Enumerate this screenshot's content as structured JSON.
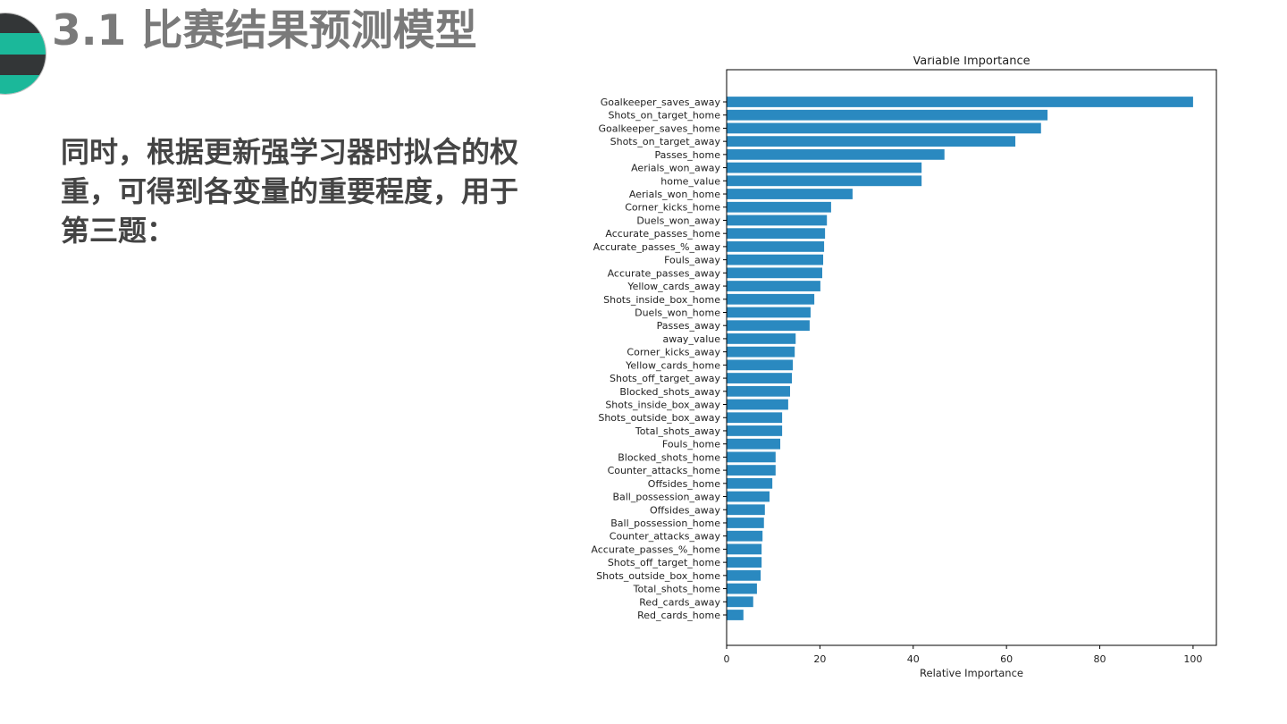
{
  "slide": {
    "title": "3.1  比赛结果预测模型",
    "body": "同时，根据更新强学习器时拟合的权重，可得到各变量的重要程度，用于第三题：",
    "logo_colors": [
      "#333637",
      "#1bb89a"
    ]
  },
  "chart_data": {
    "type": "bar",
    "orientation": "horizontal",
    "title": "Variable Importance",
    "xlabel": "Relative Importance",
    "ylabel": "",
    "xlim": [
      0,
      105
    ],
    "xticks": [
      0,
      20,
      40,
      60,
      80,
      100
    ],
    "grid": false,
    "bar_color": "#2a89c0",
    "categories": [
      "Goalkeeper_saves_away",
      "Shots_on_target_home",
      "Goalkeeper_saves_home",
      "Shots_on_target_away",
      "Passes_home",
      "Aerials_won_away",
      "home_value",
      "Aerials_won_home",
      "Corner_kicks_home",
      "Duels_won_away",
      "Accurate_passes_home",
      "Accurate_passes_%_away",
      "Fouls_away",
      "Accurate_passes_away",
      "Yellow_cards_away",
      "Shots_inside_box_home",
      "Duels_won_home",
      "Passes_away",
      "away_value",
      "Corner_kicks_away",
      "Yellow_cards_home",
      "Shots_off_target_away",
      "Blocked_shots_away",
      "Shots_inside_box_away",
      "Shots_outside_box_away",
      "Total_shots_away",
      "Fouls_home",
      "Blocked_shots_home",
      "Counter_attacks_home",
      "Offsides_home",
      "Ball_possession_away",
      "Offsides_away",
      "Ball_possession_home",
      "Counter_attacks_away",
      "Accurate_passes_%_home",
      "Shots_off_target_home",
      "Shots_outside_box_home",
      "Total_shots_home",
      "Red_cards_away",
      "Red_cards_home"
    ],
    "values": [
      100,
      68.8,
      67.4,
      61.9,
      46.7,
      41.8,
      41.8,
      27.0,
      22.4,
      21.5,
      21.1,
      20.9,
      20.7,
      20.5,
      20.1,
      18.8,
      18.0,
      17.8,
      14.8,
      14.6,
      14.2,
      14.0,
      13.6,
      13.2,
      11.9,
      11.9,
      11.5,
      10.5,
      10.5,
      9.8,
      9.2,
      8.2,
      8.0,
      7.7,
      7.5,
      7.5,
      7.3,
      6.5,
      5.7,
      3.6
    ]
  }
}
